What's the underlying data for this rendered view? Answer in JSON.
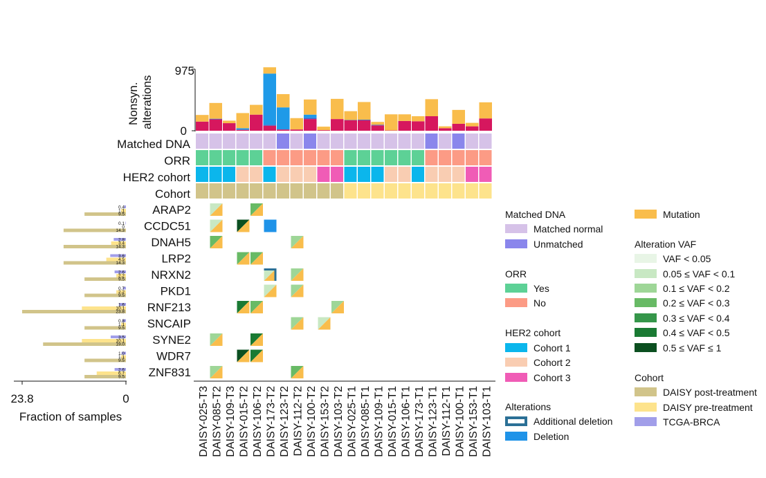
{
  "chart_data": {
    "type": "oncoprint",
    "samples": [
      "DAISY-025-T3",
      "DAISY-085-T2",
      "DAISY-109-T3",
      "DAISY-015-T2",
      "DAISY-106-T2",
      "DAISY-173-T2",
      "DAISY-123-T2",
      "DAISY-112-T2",
      "DAISY-100-T2",
      "DAISY-153-T2",
      "DAISY-103-T2",
      "DAISY-025-T1",
      "DAISY-085-T1",
      "DAISY-109-T1",
      "DAISY-015-T1",
      "DAISY-106-T1",
      "DAISY-173-T1",
      "DAISY-123-T1",
      "DAISY-112-T1",
      "DAISY-100-T1",
      "DAISY-153-T1",
      "DAISY-103-T1"
    ],
    "top_bar": {
      "ylabel": "Nonsyn. alterations",
      "ylim": [
        0,
        975
      ],
      "ticks": [
        "975",
        "0"
      ],
      "series": [
        {
          "name": "crimson",
          "color": "#d6175e",
          "values": [
            145,
            180,
            120,
            15,
            255,
            80,
            20,
            20,
            185,
            10,
            185,
            165,
            165,
            85,
            5,
            155,
            150,
            230,
            40,
            110,
            70,
            195
          ]
        },
        {
          "name": "dark-blue",
          "color": "#3a64c8",
          "values": [
            0,
            10,
            0,
            0,
            0,
            15,
            0,
            0,
            20,
            0,
            0,
            5,
            10,
            10,
            0,
            0,
            0,
            0,
            0,
            0,
            0,
            0
          ]
        },
        {
          "name": "light-blue",
          "color": "#1f9ae8",
          "values": [
            0,
            0,
            0,
            25,
            0,
            810,
            350,
            0,
            50,
            0,
            0,
            0,
            0,
            0,
            0,
            0,
            0,
            0,
            0,
            0,
            0,
            0
          ]
        },
        {
          "name": "orange",
          "color": "#f9bd4c",
          "values": [
            105,
            250,
            40,
            240,
            155,
            100,
            210,
            180,
            240,
            55,
            320,
            140,
            280,
            45,
            255,
            105,
            80,
            270,
            30,
            220,
            55,
            255
          ]
        }
      ]
    },
    "tracks": {
      "matched_dna": [
        "Matched normal",
        "Matched normal",
        "Matched normal",
        "Matched normal",
        "Matched normal",
        "Matched normal",
        "Unmatched",
        "Matched normal",
        "Unmatched",
        "Matched normal",
        "Matched normal",
        "Matched normal",
        "Matched normal",
        "Matched normal",
        "Matched normal",
        "Matched normal",
        "Matched normal",
        "Unmatched",
        "Matched normal",
        "Unmatched",
        "Matched normal",
        "Matched normal"
      ],
      "orr": [
        "Yes",
        "Yes",
        "Yes",
        "Yes",
        "Yes",
        "No",
        "No",
        "No",
        "No",
        "No",
        "No",
        "Yes",
        "Yes",
        "Yes",
        "Yes",
        "Yes",
        "Yes",
        "No",
        "No",
        "No",
        "No",
        "No"
      ],
      "her2_cohort": [
        "Cohort 1",
        "Cohort 1",
        "Cohort 1",
        "Cohort 2",
        "Cohort 2",
        "Cohort 1",
        "Cohort 2",
        "Cohort 2",
        "Cohort 2",
        "Cohort 3",
        "Cohort 3",
        "Cohort 1",
        "Cohort 1",
        "Cohort 1",
        "Cohort 2",
        "Cohort 2",
        "Cohort 1",
        "Cohort 2",
        "Cohort 2",
        "Cohort 2",
        "Cohort 3",
        "Cohort 3"
      ],
      "cohort": [
        "DAISY post-treatment",
        "DAISY post-treatment",
        "DAISY post-treatment",
        "DAISY post-treatment",
        "DAISY post-treatment",
        "DAISY post-treatment",
        "DAISY post-treatment",
        "DAISY post-treatment",
        "DAISY post-treatment",
        "DAISY post-treatment",
        "DAISY post-treatment",
        "DAISY pre-treatment",
        "DAISY pre-treatment",
        "DAISY pre-treatment",
        "DAISY pre-treatment",
        "DAISY pre-treatment",
        "DAISY pre-treatment",
        "DAISY pre-treatment",
        "DAISY pre-treatment",
        "DAISY pre-treatment",
        "DAISY pre-treatment",
        "DAISY pre-treatment"
      ]
    },
    "track_labels": {
      "matched_dna": "Matched DNA",
      "orr": "ORR",
      "her2_cohort": "HER2 cohort",
      "cohort": "Cohort"
    },
    "genes": [
      "ARAP2",
      "CCDC51",
      "DNAH5",
      "LRP2",
      "NRXN2",
      "PKD1",
      "RNF213",
      "SNCAIP",
      "SYNE2",
      "WDR7",
      "ZNF831"
    ],
    "alterations": [
      {
        "gene": 0,
        "sample": 1,
        "type": "mutation",
        "vaf": 1
      },
      {
        "gene": 0,
        "sample": 4,
        "type": "mutation",
        "vaf": 3
      },
      {
        "gene": 1,
        "sample": 1,
        "type": "mutation",
        "vaf": 1
      },
      {
        "gene": 1,
        "sample": 3,
        "type": "mutation",
        "vaf": 6
      },
      {
        "gene": 1,
        "sample": 5,
        "type": "deletion"
      },
      {
        "gene": 2,
        "sample": 1,
        "type": "mutation",
        "vaf": 3
      },
      {
        "gene": 2,
        "sample": 7,
        "type": "mutation",
        "vaf": 2
      },
      {
        "gene": 3,
        "sample": 3,
        "type": "mutation",
        "vaf": 3
      },
      {
        "gene": 3,
        "sample": 4,
        "type": "mutation",
        "vaf": 3
      },
      {
        "gene": 4,
        "sample": 5,
        "type": "mutation",
        "vaf": 1,
        "extra": "additional_deletion"
      },
      {
        "gene": 4,
        "sample": 7,
        "type": "mutation",
        "vaf": 2
      },
      {
        "gene": 5,
        "sample": 5,
        "type": "mutation",
        "vaf": 1
      },
      {
        "gene": 5,
        "sample": 7,
        "type": "mutation",
        "vaf": 2
      },
      {
        "gene": 6,
        "sample": 3,
        "type": "mutation",
        "vaf": 5
      },
      {
        "gene": 6,
        "sample": 4,
        "type": "mutation",
        "vaf": 3
      },
      {
        "gene": 6,
        "sample": 10,
        "type": "mutation",
        "vaf": 2
      },
      {
        "gene": 7,
        "sample": 7,
        "type": "mutation",
        "vaf": 2
      },
      {
        "gene": 7,
        "sample": 9,
        "type": "mutation",
        "vaf": 1
      },
      {
        "gene": 8,
        "sample": 1,
        "type": "mutation",
        "vaf": 2
      },
      {
        "gene": 8,
        "sample": 4,
        "type": "mutation",
        "vaf": 5
      },
      {
        "gene": 9,
        "sample": 3,
        "type": "mutation",
        "vaf": 6
      },
      {
        "gene": 9,
        "sample": 4,
        "type": "mutation",
        "vaf": 5
      },
      {
        "gene": 10,
        "sample": 1,
        "type": "mutation",
        "vaf": 2
      },
      {
        "gene": 10,
        "sample": 7,
        "type": "mutation",
        "vaf": 3
      }
    ],
    "side_bar": {
      "xlabel": "Fraction of samples",
      "ticks": [
        "23.8",
        "0"
      ],
      "xlim": [
        23.8,
        0
      ],
      "cohort_order": [
        "TCGA-BRCA",
        "DAISY pre-treatment",
        "DAISY post-treatment"
      ],
      "values": [
        [
          "0.4",
          "1.1",
          "9.5"
        ],
        [
          "0.1",
          "0",
          "14.3"
        ],
        [
          "2.8",
          "3.4",
          "14.3"
        ],
        [
          "3.6",
          "4.5",
          "14.3"
        ],
        [
          "2.6",
          "2.2",
          "9.5"
        ],
        [
          "0.7",
          "2.2",
          "9.5"
        ],
        [
          "1.6",
          "10.1",
          "23.8"
        ],
        [
          "0.8",
          "1.1",
          "9.5"
        ],
        [
          "3.5",
          "10.1",
          "19.0"
        ],
        [
          "1.0",
          "1.1",
          "9.5"
        ],
        [
          "2.6",
          "6.7",
          "9.5"
        ]
      ]
    },
    "colors": {
      "matched_dna": {
        "Matched normal": "#d6c2e8",
        "Unmatched": "#8a86ec"
      },
      "orr": {
        "Yes": "#5dd196",
        "No": "#fc9b85"
      },
      "her2_cohort": {
        "Cohort 1": "#0bb6ec",
        "Cohort 2": "#f9cdb2",
        "Cohort 3": "#f05cb6"
      },
      "cohort": {
        "DAISY post-treatment": "#d1c48a",
        "DAISY pre-treatment": "#fde38c",
        "TCGA-BRCA": "#a19ee9"
      },
      "mutation": "#f9bd4c",
      "deletion": "#1f93e8",
      "additional_deletion": "#2b7096",
      "vaf": [
        "#e8f5e6",
        "#c8e8c3",
        "#9ed697",
        "#68ba65",
        "#35964a",
        "#1a7a33",
        "#0b4f20"
      ]
    },
    "legend": {
      "matched_dna": {
        "title": "Matched DNA",
        "items": [
          "Matched normal",
          "Unmatched"
        ]
      },
      "orr": {
        "title": "ORR",
        "items": [
          "Yes",
          "No"
        ]
      },
      "her2_cohort": {
        "title": "HER2 cohort",
        "items": [
          "Cohort 1",
          "Cohort 2",
          "Cohort 3"
        ]
      },
      "alterations": {
        "title": "Alterations",
        "items": [
          "Additional deletion",
          "Deletion"
        ]
      },
      "mutation": {
        "items": [
          "Mutation"
        ]
      },
      "vaf": {
        "title": "Alteration VAF",
        "items": [
          "VAF < 0.05",
          "0.05 ≤ VAF < 0.1",
          "0.1 ≤ VAF < 0.2",
          "0.2 ≤ VAF < 0.3",
          "0.3 ≤ VAF < 0.4",
          "0.4 ≤ VAF < 0.5",
          "0.5 ≤ VAF ≤ 1"
        ]
      },
      "cohort": {
        "title": "Cohort",
        "items": [
          "DAISY post-treatment",
          "DAISY pre-treatment",
          "TCGA-BRCA"
        ]
      }
    }
  }
}
